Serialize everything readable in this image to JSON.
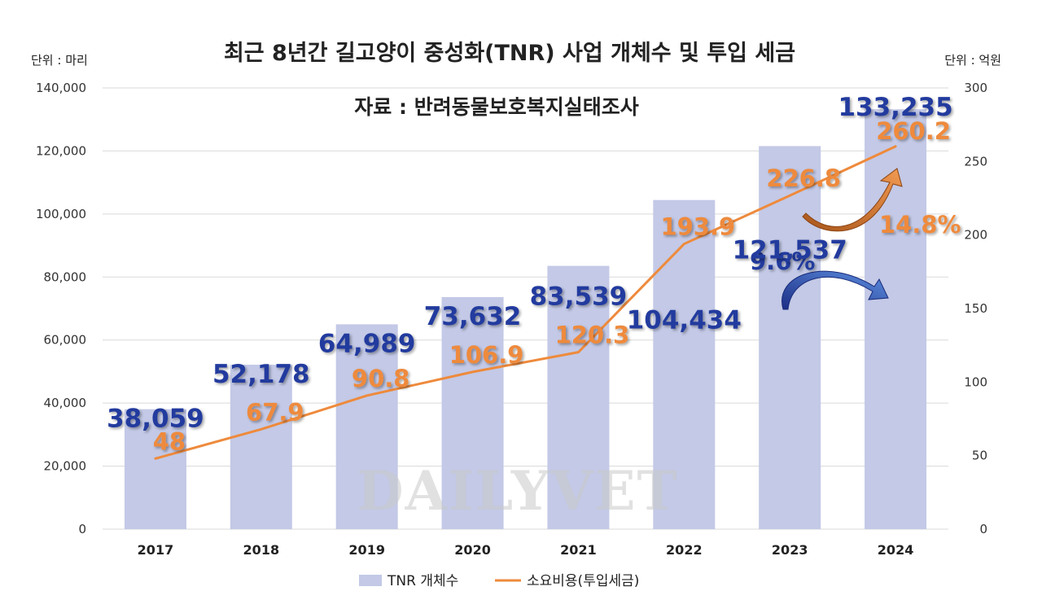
{
  "chart_data": {
    "type": "bar",
    "title": "최근 8년간 길고양이 중성화(TNR) 사업 개체수 및 투입 세금",
    "subtitle": "자료 : 반려동물보호복지실태조사",
    "y_left_unit": "단위 : 마리",
    "y_right_unit": "단위 : 억원",
    "categories": [
      "2017",
      "2018",
      "2019",
      "2020",
      "2021",
      "2022",
      "2023",
      "2024"
    ],
    "y_left_ticks": [
      "0",
      "20,000",
      "40,000",
      "60,000",
      "80,000",
      "100,000",
      "120,000",
      "140,000"
    ],
    "y_right_ticks": [
      "0",
      "50",
      "100",
      "150",
      "200",
      "250",
      "300"
    ],
    "ylim_left": [
      0,
      140000
    ],
    "ylim_right": [
      0,
      300
    ],
    "grid": true,
    "legend_position": "bottom",
    "series": [
      {
        "name": "TNR 개체수",
        "type": "bar",
        "axis": "left",
        "color": "#c3c9e6",
        "label_color": "#243b9e",
        "values": [
          38059,
          52178,
          64989,
          73632,
          83539,
          104434,
          121537,
          133235
        ],
        "labels": [
          "38,059",
          "52,178",
          "64,989",
          "73,632",
          "83,539",
          "104,434",
          "121,537",
          "133,235"
        ]
      },
      {
        "name": "소요비용(투입세금)",
        "type": "line",
        "axis": "right",
        "color": "#ee8a3c",
        "values": [
          48,
          67.9,
          90.8,
          106.9,
          120.3,
          193.9,
          226.8,
          260.2
        ],
        "labels": [
          "48",
          "67.9",
          "90.8",
          "106.9",
          "120.3",
          "193.9",
          "226.8",
          "260.2"
        ]
      }
    ],
    "annotations": {
      "cost_growth": "14.8%",
      "count_growth": "9.6%"
    },
    "watermark": "DAILYVET"
  }
}
